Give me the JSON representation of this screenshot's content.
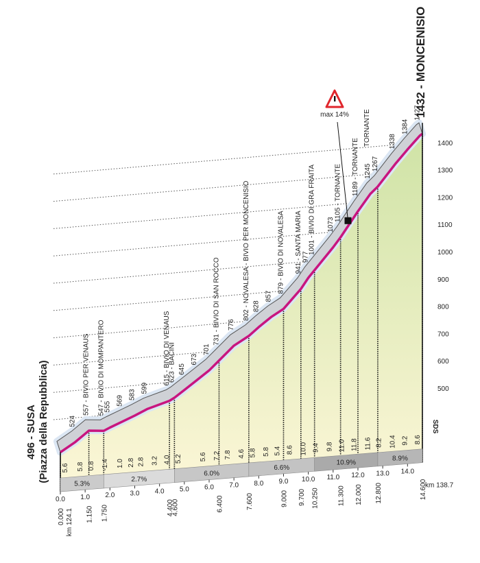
{
  "chart_data": {
    "type": "profile",
    "start_sublabel": "(Piazza della Repubblica)",
    "start_race_km": "km 124.1",
    "finish_race_km": "km 138.7",
    "logo": "SDS",
    "max_gradient_label": "max 14%",
    "max_gradient_km": 11.6,
    "xlim": [
      0,
      14.6
    ],
    "ylim": [
      300,
      1450
    ],
    "yticks": [
      500,
      600,
      700,
      800,
      900,
      1000,
      1100,
      1200,
      1300,
      1400
    ],
    "grid": true,
    "colors": {
      "line": "#c8157f",
      "ribbon": "#cfd1d6",
      "fill_top": "#cfe3a6",
      "fill_bottom": "#fbf6d6"
    },
    "points": {
      "x": [
        0,
        0.6,
        1.15,
        1.75,
        2.0,
        2.5,
        3.0,
        3.5,
        4.4,
        4.6,
        5.0,
        5.5,
        6.0,
        6.4,
        7.0,
        7.6,
        8.0,
        8.5,
        9.0,
        9.7,
        10.0,
        10.25,
        11.0,
        11.3,
        12.0,
        12.5,
        12.8,
        13.5,
        14.0,
        14.5,
        14.6
      ],
      "values": [
        496,
        524,
        557,
        547,
        555,
        569,
        583,
        599,
        615,
        623,
        645,
        673,
        701,
        731,
        776,
        802,
        828,
        857,
        879,
        941,
        977,
        1001,
        1073,
        1105,
        1189,
        1245,
        1267,
        1338,
        1384,
        1427,
        1432
      ],
      "value_labels": [
        "496 - SUSA",
        "524",
        "557 - BIVIO PER VENAUS",
        "547 - BIVIO DI MOMPANTERO",
        "555",
        "569",
        "583",
        "599",
        "615 - BIVIO DI VENAUS",
        "623 - BACINI",
        "645",
        "673",
        "701",
        "731 - BIVIO DI SAN ROCCO",
        "776",
        "802 - NOVALESA - BIVIO PER MONCENISIO",
        "828",
        "857",
        "879 - BIVIO DI NOVALESA",
        "941 - SANTA MARIA",
        "977",
        "1001 - BIVIO DI GRA FRAITA",
        "1073",
        "1105 - TORNANTE",
        "1189 - TORNANTE",
        "1245",
        "1267",
        "1338",
        "1384",
        "1427",
        "1432 - MONCENISIO"
      ]
    },
    "annotations": [
      {
        "text": "TORNANTE",
        "x": 12.8
      }
    ],
    "km_marks": [
      {
        "value": 0,
        "label": "0.000"
      },
      {
        "value": 1.15,
        "label": "1.150"
      },
      {
        "value": 1.75,
        "label": "1.750"
      },
      {
        "value": 4.4,
        "label": "4.400"
      },
      {
        "value": 4.6,
        "label": "4.600"
      },
      {
        "value": 6.4,
        "label": "6.400"
      },
      {
        "value": 7.6,
        "label": "7.600"
      },
      {
        "value": 9.0,
        "label": "9.000"
      },
      {
        "value": 9.7,
        "label": "9.700"
      },
      {
        "value": 10.25,
        "label": "10.250"
      },
      {
        "value": 11.3,
        "label": "11.300"
      },
      {
        "value": 12.0,
        "label": "12.000"
      },
      {
        "value": 12.8,
        "label": "12.800"
      },
      {
        "value": 14.6,
        "label": "14.600"
      }
    ],
    "xticks": [
      {
        "value": 0,
        "label": "0.0"
      },
      {
        "value": 1,
        "label": "1.0"
      },
      {
        "value": 2,
        "label": "2.0"
      },
      {
        "value": 3,
        "label": "3.0"
      },
      {
        "value": 4,
        "label": "4.0"
      },
      {
        "value": 5,
        "label": "5.0"
      },
      {
        "value": 6,
        "label": "6.0"
      },
      {
        "value": 7,
        "label": "7.0"
      },
      {
        "value": 8,
        "label": "8.0"
      },
      {
        "value": 9,
        "label": "9.0"
      },
      {
        "value": 10,
        "label": "10.0"
      },
      {
        "value": 11,
        "label": "11.0"
      },
      {
        "value": 12,
        "label": "12.0"
      },
      {
        "value": 13,
        "label": "13.0"
      },
      {
        "value": 14,
        "label": "14.0"
      }
    ],
    "gradients": {
      "x": [
        0.2,
        0.8,
        1.25,
        1.8,
        2.4,
        2.85,
        3.25,
        3.8,
        4.3,
        4.75,
        5.75,
        6.3,
        6.75,
        7.3,
        7.75,
        8.3,
        8.75,
        9.25,
        9.8,
        10.3,
        10.85,
        11.35,
        11.85,
        12.4,
        12.85,
        13.4,
        13.9,
        14.4
      ],
      "values": [
        5.6,
        5.8,
        0.8,
        -1.4,
        1.0,
        2.8,
        2.8,
        3.2,
        4.0,
        5.2,
        5.6,
        7.2,
        7.8,
        4.6,
        5.8,
        5.8,
        5.4,
        8.6,
        10.0,
        9.4,
        9.8,
        11.0,
        11.8,
        11.6,
        8.2,
        10.4,
        9.2,
        8.6
      ],
      "value_labels": [
        "5.6",
        "5.8",
        "0.8",
        "-1.4",
        "1.0",
        "2.8",
        "2.8",
        "3.2",
        "4.0",
        "5.2",
        "5.6",
        "7.2",
        "7.8",
        "4.6",
        "5.8",
        "5.8",
        "5.4",
        "8.6",
        "10.0",
        "9.4",
        "9.8",
        "11.0",
        "11.8",
        "11.6",
        "8.2",
        "10.4",
        "9.2",
        "8.6"
      ]
    },
    "average_gradients": {
      "from": [
        0,
        1.75,
        4.6,
        7.6,
        10.25,
        12.8
      ],
      "to": [
        1.75,
        4.6,
        7.6,
        10.25,
        12.8,
        14.6
      ],
      "values": [
        5.3,
        2.7,
        6.0,
        6.6,
        10.9,
        8.9
      ],
      "value_labels": [
        "5.3%",
        "2.7%",
        "6.0%",
        "6.6%",
        "10.9%",
        "8.9%"
      ]
    }
  }
}
